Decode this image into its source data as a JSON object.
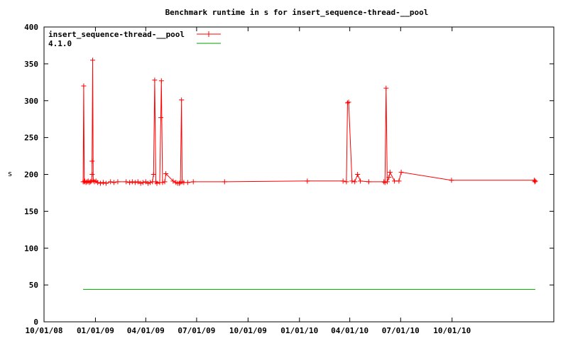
{
  "chart_data": {
    "type": "line",
    "title": "Benchmark runtime in s for insert_sequence-thread-__pool",
    "xlabel": "",
    "ylabel": "s",
    "x_axis_type": "date",
    "xlim": [
      "2008-10-01",
      "2011-04-01"
    ],
    "ylim": [
      0,
      400
    ],
    "y_ticks": [
      0,
      50,
      100,
      150,
      200,
      250,
      300,
      350,
      400
    ],
    "x_tick_dates": [
      "2008-10-01",
      "2009-01-01",
      "2009-04-01",
      "2009-07-01",
      "2009-10-01",
      "2010-01-01",
      "2010-04-01",
      "2010-07-01",
      "2010-10-01"
    ],
    "x_tick_labels": [
      "10/01/08",
      "01/01/09",
      "04/01/09",
      "07/01/09",
      "10/01/09",
      "01/01/10",
      "04/01/10",
      "07/01/10",
      "10/01/10"
    ],
    "grid": false,
    "legend_position": "top-left",
    "series": [
      {
        "name": "insert_sequence-thread-__pool",
        "color": "#ff0000",
        "marker": "plus",
        "points": [
          [
            "2008-12-10",
            190
          ],
          [
            "2008-12-11",
            320
          ],
          [
            "2008-12-12",
            190
          ],
          [
            "2008-12-13",
            191
          ],
          [
            "2008-12-15",
            189
          ],
          [
            "2008-12-17",
            190
          ],
          [
            "2008-12-19",
            191
          ],
          [
            "2008-12-21",
            189
          ],
          [
            "2008-12-23",
            190
          ],
          [
            "2008-12-25",
            191
          ],
          [
            "2008-12-26",
            200
          ],
          [
            "2008-12-26",
            218
          ],
          [
            "2008-12-27",
            355
          ],
          [
            "2008-12-28",
            192
          ],
          [
            "2008-12-30",
            190
          ],
          [
            "2009-01-02",
            191
          ],
          [
            "2009-01-05",
            189
          ],
          [
            "2009-01-10",
            188
          ],
          [
            "2009-01-15",
            189
          ],
          [
            "2009-01-20",
            188
          ],
          [
            "2009-01-28",
            190
          ],
          [
            "2009-02-03",
            189
          ],
          [
            "2009-02-10",
            190
          ],
          [
            "2009-02-25",
            190
          ],
          [
            "2009-03-03",
            189
          ],
          [
            "2009-03-08",
            190
          ],
          [
            "2009-03-13",
            189
          ],
          [
            "2009-03-18",
            190
          ],
          [
            "2009-03-23",
            188
          ],
          [
            "2009-03-27",
            189
          ],
          [
            "2009-04-01",
            190
          ],
          [
            "2009-04-05",
            188
          ],
          [
            "2009-04-09",
            189
          ],
          [
            "2009-04-13",
            190
          ],
          [
            "2009-04-15",
            200
          ],
          [
            "2009-04-17",
            328
          ],
          [
            "2009-04-19",
            190
          ],
          [
            "2009-04-21",
            188
          ],
          [
            "2009-04-26",
            189
          ],
          [
            "2009-04-28",
            277
          ],
          [
            "2009-04-29",
            327
          ],
          [
            "2009-05-01",
            189
          ],
          [
            "2009-05-05",
            190
          ],
          [
            "2009-05-07",
            201
          ],
          [
            "2009-05-20",
            191
          ],
          [
            "2009-05-25",
            189
          ],
          [
            "2009-05-28",
            188
          ],
          [
            "2009-05-31",
            188
          ],
          [
            "2009-06-02",
            189
          ],
          [
            "2009-06-04",
            301
          ],
          [
            "2009-06-05",
            190
          ],
          [
            "2009-06-08",
            189
          ],
          [
            "2009-06-15",
            189
          ],
          [
            "2009-06-25",
            190
          ],
          [
            "2009-08-20",
            190
          ],
          [
            "2010-01-15",
            191
          ],
          [
            "2010-03-20",
            191
          ],
          [
            "2010-03-26",
            190
          ],
          [
            "2010-03-28",
            297
          ],
          [
            "2010-03-30",
            298
          ],
          [
            "2010-04-05",
            191
          ],
          [
            "2010-04-10",
            190
          ],
          [
            "2010-04-15",
            200
          ],
          [
            "2010-04-20",
            191
          ],
          [
            "2010-05-05",
            190
          ],
          [
            "2010-06-01",
            190
          ],
          [
            "2010-06-03",
            189
          ],
          [
            "2010-06-05",
            317
          ],
          [
            "2010-06-07",
            190
          ],
          [
            "2010-06-10",
            196
          ],
          [
            "2010-06-12",
            203
          ],
          [
            "2010-06-20",
            191
          ],
          [
            "2010-06-28",
            191
          ],
          [
            "2010-07-02",
            203
          ],
          [
            "2010-09-30",
            192
          ],
          [
            "2011-02-25",
            192
          ],
          [
            "2011-02-26",
            190
          ],
          [
            "2011-02-27",
            191
          ]
        ]
      },
      {
        "name": "4.1.0",
        "color": "#00a000",
        "marker": "none",
        "points": [
          [
            "2008-12-10",
            44
          ],
          [
            "2011-02-27",
            44
          ]
        ]
      }
    ]
  }
}
